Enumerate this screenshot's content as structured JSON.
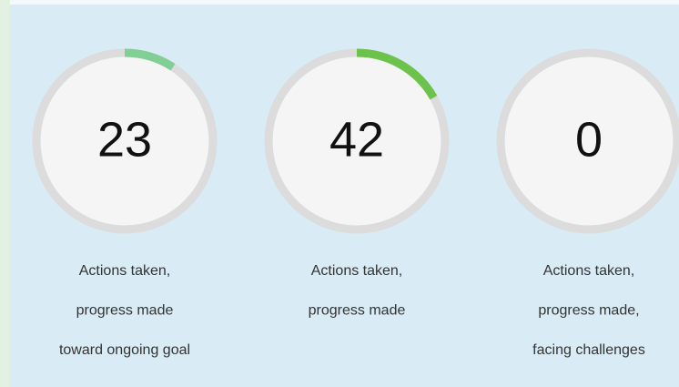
{
  "range": [
    0,
    250
  ],
  "track_color": "#dcdcdc",
  "gauges": [
    {
      "value": 23,
      "color": "#82cf96",
      "label_lines": [
        "Actions taken,",
        "progress made",
        "toward ongoing goal"
      ]
    },
    {
      "value": 42,
      "color": "#6cc24a",
      "label_lines": [
        "Actions taken,",
        "progress made"
      ]
    },
    {
      "value": 0,
      "color": "#6cc24a",
      "label_lines": [
        "Actions taken,",
        "progress made,",
        "facing challenges"
      ]
    }
  ]
}
